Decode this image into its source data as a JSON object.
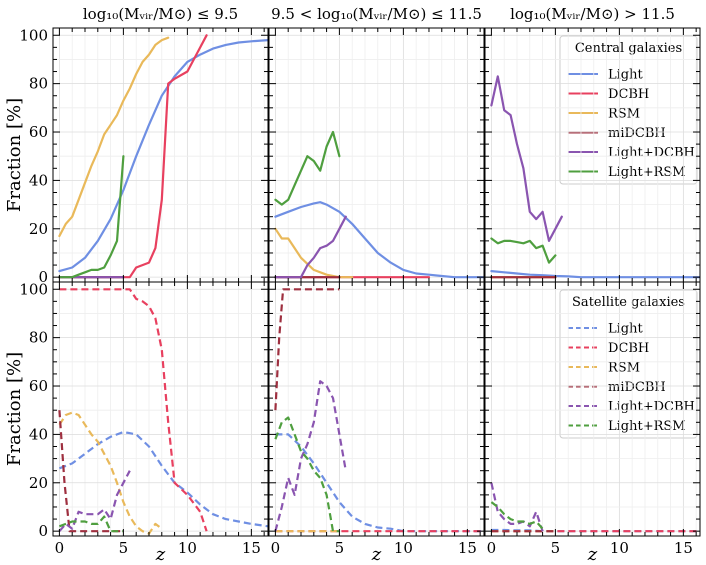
{
  "figure": {
    "ylabel": "Fraction [%]",
    "xlabel": "z",
    "column_titles": [
      "log₁₀(Mᵥᵢᵣ/M⊙) ≤ 9.5",
      "9.5 < log₁₀(Mᵥᵢᵣ/M⊙) ≤ 11.5",
      "log₁₀(Mᵥᵢᵣ/M⊙) > 11.5"
    ],
    "row_legend_titles": [
      "Central galaxies",
      "Satellite galaxies"
    ],
    "x_ticks": [
      0,
      5,
      10,
      15
    ],
    "y_ticks": [
      0,
      20,
      40,
      60,
      80,
      100
    ],
    "xlim": [
      -0.5,
      16.3
    ],
    "ylim": [
      -2,
      103
    ]
  },
  "series_meta": [
    {
      "name": "Light",
      "color": "#6f8fe3"
    },
    {
      "name": "DCBH",
      "color": "#e8405f"
    },
    {
      "name": "RSM",
      "color": "#e9b95a"
    },
    {
      "name": "miDCBH",
      "color": "#9e2f3f"
    },
    {
      "name": "Light+DCBH",
      "color": "#8a55b0"
    },
    {
      "name": "Light+RSM",
      "color": "#4f9f3f"
    }
  ],
  "chart_data": [
    {
      "type": "line",
      "row": "central",
      "grid": true,
      "xlim": [
        -0.5,
        16.3
      ],
      "ylim": [
        -2,
        103
      ],
      "series": [
        {
          "name": "Light",
          "x": [
            0,
            1,
            2,
            3,
            4,
            5,
            6,
            7,
            8,
            9,
            10,
            11,
            12,
            13,
            14,
            15,
            16.3
          ],
          "y": [
            2.5,
            4,
            8,
            15,
            24,
            36,
            50,
            63,
            75,
            83,
            89,
            92,
            94.5,
            96,
            97,
            97.5,
            98
          ]
        },
        {
          "name": "DCBH",
          "x": [
            0,
            4.5,
            5.5,
            6,
            7,
            7.5,
            8,
            8.5,
            9,
            10,
            11,
            11.5
          ],
          "y": [
            0,
            0,
            0,
            4,
            6,
            12,
            32,
            80,
            82,
            85,
            95,
            100
          ]
        },
        {
          "name": "RSM",
          "x": [
            0,
            0.5,
            1,
            1.5,
            2,
            2.5,
            3,
            3.5,
            4,
            4.5,
            5,
            5.5,
            6,
            6.5,
            7,
            7.5,
            8,
            8.5
          ],
          "y": [
            17,
            22,
            25,
            32,
            39,
            46,
            52,
            59,
            63,
            67,
            73,
            78,
            84,
            89,
            92,
            96,
            98,
            99
          ]
        },
        {
          "name": "miDCBH",
          "x": [
            0,
            1,
            2,
            3,
            4,
            5
          ],
          "y": [
            0,
            0,
            0,
            0,
            0,
            0
          ]
        },
        {
          "name": "Light+DCBH",
          "x": [
            0,
            1,
            2,
            3,
            4,
            5
          ],
          "y": [
            0,
            0,
            0,
            0,
            0,
            0
          ]
        },
        {
          "name": "Light+RSM",
          "x": [
            0,
            1,
            1.5,
            2,
            2.5,
            3,
            3.5,
            4,
            4.5,
            5
          ],
          "y": [
            0,
            0,
            1,
            2,
            3,
            3,
            4,
            9,
            15,
            50
          ]
        }
      ]
    },
    {
      "type": "line",
      "row": "central",
      "grid": true,
      "xlim": [
        -0.5,
        16.3
      ],
      "ylim": [
        -2,
        103
      ],
      "legend": {
        "title": "Central galaxies",
        "position": "top-right"
      },
      "series": [
        {
          "name": "Light",
          "x": [
            0,
            1,
            2,
            3,
            3.5,
            4,
            5,
            6,
            7,
            8,
            9,
            10,
            11,
            12,
            13,
            14,
            15,
            16.3
          ],
          "y": [
            25,
            27,
            29,
            30.5,
            31,
            30,
            27,
            22,
            16,
            10,
            6,
            3,
            1.5,
            1,
            0.5,
            0,
            0,
            0
          ]
        },
        {
          "name": "DCBH",
          "x": [
            0,
            2,
            4,
            6,
            8,
            10,
            12
          ],
          "y": [
            0,
            0,
            0,
            0,
            0,
            0,
            0
          ]
        },
        {
          "name": "RSM",
          "x": [
            0,
            0.5,
            1,
            1.5,
            2,
            3,
            4,
            5,
            6
          ],
          "y": [
            20,
            16,
            16,
            12,
            8,
            3,
            1,
            0,
            0
          ]
        },
        {
          "name": "miDCBH",
          "x": [
            0,
            1,
            2,
            3,
            4,
            5
          ],
          "y": [
            0,
            0,
            0,
            0,
            0,
            0
          ]
        },
        {
          "name": "Light+DCBH",
          "x": [
            0,
            1,
            2,
            2.5,
            3,
            3.5,
            4,
            4.5,
            5,
            5.5
          ],
          "y": [
            0,
            0,
            0,
            5,
            8,
            12,
            13,
            15,
            20,
            25
          ]
        },
        {
          "name": "Light+RSM",
          "x": [
            0,
            0.5,
            1,
            1.5,
            2,
            2.5,
            3,
            3.5,
            4,
            4.5,
            5
          ],
          "y": [
            32,
            30,
            32,
            38,
            44,
            50,
            48,
            44,
            54,
            60,
            50
          ]
        }
      ]
    },
    {
      "type": "line",
      "row": "central",
      "grid": true,
      "xlim": [
        -0.5,
        16.3
      ],
      "ylim": [
        -2,
        103
      ],
      "series": [
        {
          "name": "Light",
          "x": [
            0,
            1,
            2,
            3,
            4,
            5,
            6,
            7,
            8,
            9,
            10,
            11,
            12,
            13,
            14,
            15,
            16.3
          ],
          "y": [
            2.5,
            2,
            1.5,
            1,
            0.8,
            0.5,
            0.3,
            0,
            0,
            0,
            0,
            0,
            0,
            0,
            0,
            0,
            0
          ]
        },
        {
          "name": "DCBH",
          "x": [
            0,
            1,
            2,
            3,
            4,
            5
          ],
          "y": [
            0,
            0,
            0,
            0,
            0,
            0
          ]
        },
        {
          "name": "RSM",
          "x": [
            0,
            1,
            2,
            3,
            4,
            5
          ],
          "y": [
            0,
            0,
            0,
            0,
            0,
            0
          ]
        },
        {
          "name": "miDCBH",
          "x": [
            0,
            1,
            2,
            3,
            4,
            5
          ],
          "y": [
            0,
            0,
            0,
            0,
            0,
            0
          ]
        },
        {
          "name": "Light+DCBH",
          "x": [
            0,
            0.5,
            1,
            1.5,
            2,
            2.5,
            3,
            3.5,
            4,
            4.5,
            5,
            5.5
          ],
          "y": [
            71,
            83,
            69,
            67,
            55,
            45,
            27,
            24,
            27,
            15,
            20,
            25
          ]
        },
        {
          "name": "Light+RSM",
          "x": [
            0,
            0.5,
            1,
            1.5,
            2,
            2.5,
            3,
            3.5,
            4,
            4.5,
            5
          ],
          "y": [
            16,
            14,
            15,
            15,
            14.5,
            14,
            15,
            12,
            13,
            6,
            9
          ]
        }
      ]
    },
    {
      "type": "line",
      "row": "satellite",
      "linestyle": "dashed",
      "grid": true,
      "xlim": [
        -0.5,
        16.3
      ],
      "ylim": [
        -2,
        103
      ],
      "series": [
        {
          "name": "Light",
          "x": [
            0,
            1,
            2,
            3,
            4,
            5,
            6,
            7,
            8,
            9,
            10,
            11,
            12,
            13,
            14,
            15,
            16.3
          ],
          "y": [
            26,
            28,
            32,
            36,
            39,
            41,
            40,
            35,
            27,
            20,
            16,
            11,
            7,
            5,
            4,
            3,
            2
          ]
        },
        {
          "name": "DCBH",
          "x": [
            0,
            1,
            2,
            3,
            4,
            5,
            5.5,
            6,
            6.5,
            7,
            7.5,
            8,
            8.5,
            9,
            10,
            11,
            11.5
          ],
          "y": [
            100,
            100,
            100,
            100,
            100,
            100,
            100,
            96,
            95,
            93,
            88,
            75,
            45,
            20,
            15,
            8,
            0
          ]
        },
        {
          "name": "RSM",
          "x": [
            0,
            0.5,
            1,
            1.5,
            2,
            2.5,
            3,
            3.5,
            4,
            4.5,
            5,
            5.5,
            6,
            6.5,
            7,
            7.5,
            8
          ],
          "y": [
            44,
            48,
            49,
            48,
            44,
            40,
            37,
            32,
            27,
            20,
            12,
            6,
            2,
            0,
            -1,
            3,
            1
          ]
        },
        {
          "name": "miDCBH",
          "x": [
            0,
            0.4,
            0.8,
            1.2,
            2,
            3,
            4,
            5
          ],
          "y": [
            50,
            20,
            0,
            0,
            0,
            0,
            0,
            0
          ]
        },
        {
          "name": "Light+DCBH",
          "x": [
            0,
            0.5,
            1,
            1.5,
            2,
            2.5,
            3,
            3.5,
            4,
            4.5,
            5,
            5.5
          ],
          "y": [
            0,
            3,
            1,
            8,
            7,
            7,
            7,
            9,
            5,
            15,
            20,
            25
          ]
        },
        {
          "name": "Light+RSM",
          "x": [
            0,
            0.5,
            1,
            1.5,
            2,
            2.5,
            3,
            3.5,
            4,
            4.5,
            5
          ],
          "y": [
            2,
            3,
            4,
            4,
            4,
            3,
            3,
            6,
            0,
            0,
            0
          ]
        }
      ]
    },
    {
      "type": "line",
      "row": "satellite",
      "linestyle": "dashed",
      "grid": true,
      "xlim": [
        -0.5,
        16.3
      ],
      "ylim": [
        -2,
        103
      ],
      "legend": {
        "title": "Satellite galaxies",
        "position": "top-right"
      },
      "series": [
        {
          "name": "Light",
          "x": [
            0,
            1,
            2,
            3,
            4,
            5,
            6,
            7,
            8,
            9,
            10,
            11,
            12,
            13,
            14,
            15,
            16.3
          ],
          "y": [
            40,
            40,
            35,
            28,
            20,
            12,
            6,
            3,
            1.5,
            1,
            0,
            0,
            0,
            0,
            0,
            0,
            0
          ]
        },
        {
          "name": "DCBH",
          "x": [
            0,
            2,
            4,
            6,
            8,
            10,
            12,
            14,
            16.3
          ],
          "y": [
            0,
            0,
            0,
            0,
            0,
            0,
            0,
            0,
            0
          ]
        },
        {
          "name": "RSM",
          "x": [
            0,
            1,
            2,
            3,
            4,
            5
          ],
          "y": [
            0,
            0,
            0,
            0,
            0,
            0
          ]
        },
        {
          "name": "miDCBH",
          "x": [
            0,
            0.3,
            0.6,
            1,
            2,
            3,
            4,
            5
          ],
          "y": [
            50,
            80,
            100,
            100,
            100,
            100,
            100,
            100
          ]
        },
        {
          "name": "Light+DCBH",
          "x": [
            0,
            0.5,
            1,
            1.5,
            2,
            2.5,
            3,
            3.5,
            4,
            4.5,
            5,
            5.5
          ],
          "y": [
            0,
            10,
            22,
            15,
            30,
            36,
            45,
            62,
            60,
            55,
            40,
            25
          ]
        },
        {
          "name": "Light+RSM",
          "x": [
            0,
            0.5,
            1,
            1.5,
            2,
            2.5,
            3,
            3.5,
            4,
            4.5,
            5
          ],
          "y": [
            38,
            45,
            47,
            40,
            33,
            30,
            25,
            22,
            15,
            0,
            0
          ]
        }
      ]
    },
    {
      "type": "line",
      "row": "satellite",
      "linestyle": "dashed",
      "grid": true,
      "xlim": [
        -0.5,
        16.3
      ],
      "ylim": [
        -2,
        103
      ],
      "series": [
        {
          "name": "Light",
          "x": [
            0,
            1,
            2,
            3,
            4,
            5,
            6,
            7,
            8,
            9,
            10,
            11,
            12,
            13,
            14,
            15,
            16.3
          ],
          "y": [
            0.5,
            0.5,
            0.3,
            0.3,
            0,
            0,
            0,
            0,
            0,
            0,
            0,
            0,
            0,
            0,
            0,
            0,
            0
          ]
        },
        {
          "name": "DCBH",
          "x": [
            0,
            2,
            4,
            6,
            8,
            10,
            12,
            14,
            16.3
          ],
          "y": [
            0,
            0,
            0,
            0,
            0,
            0,
            0,
            0,
            0
          ]
        },
        {
          "name": "RSM",
          "x": [
            0,
            1,
            2,
            3,
            4,
            5
          ],
          "y": [
            0,
            0,
            0,
            0,
            0,
            0
          ]
        },
        {
          "name": "miDCBH",
          "x": [
            0,
            1,
            2,
            3,
            4,
            5
          ],
          "y": [
            0,
            0,
            0,
            0,
            0,
            0
          ]
        },
        {
          "name": "Light+DCBH",
          "x": [
            0,
            0.5,
            1,
            1.5,
            2,
            2.5,
            3,
            3.5,
            4
          ],
          "y": [
            20,
            8,
            5,
            3,
            3,
            4,
            2,
            8,
            0
          ]
        },
        {
          "name": "Light+RSM",
          "x": [
            0,
            0.5,
            1,
            1.5,
            2,
            2.5,
            3,
            3.5,
            4
          ],
          "y": [
            12,
            10,
            7,
            5,
            4,
            4,
            3,
            4,
            1
          ]
        }
      ]
    }
  ]
}
